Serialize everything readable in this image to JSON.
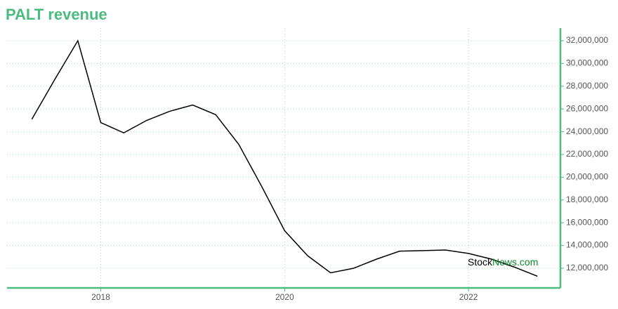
{
  "chart_data": {
    "type": "line",
    "title": "PALT revenue",
    "x": [
      2017.25,
      2017.5,
      2017.75,
      2018.0,
      2018.25,
      2018.5,
      2018.75,
      2019.0,
      2019.25,
      2019.5,
      2019.75,
      2020.0,
      2020.25,
      2020.5,
      2020.75,
      2021.0,
      2021.25,
      2021.5,
      2021.75,
      2022.0,
      2022.25,
      2022.5,
      2022.75
    ],
    "series": [
      {
        "name": "PALT revenue",
        "color": "#000000",
        "values": [
          25100000,
          28600000,
          32000000,
          24800000,
          23900000,
          25000000,
          25800000,
          26350000,
          25500000,
          22900000,
          19200000,
          15300000,
          13100000,
          11600000,
          12000000,
          12800000,
          13500000,
          13550000,
          13600000,
          13300000,
          12800000,
          12100000,
          11300000
        ]
      }
    ],
    "xlim": [
      2016.98,
      2023.0
    ],
    "xticks": [
      2018,
      2020,
      2022
    ],
    "ylim": [
      10270000,
      33110000
    ],
    "yticks": [
      {
        "value": 12000000,
        "label": "12,000,000"
      },
      {
        "value": 14000000,
        "label": "14,000,000"
      },
      {
        "value": 16000000,
        "label": "16,000,000"
      },
      {
        "value": 18000000,
        "label": "18,000,000"
      },
      {
        "value": 20000000,
        "label": "20,000,000"
      },
      {
        "value": 22000000,
        "label": "22,000,000"
      },
      {
        "value": 24000000,
        "label": "24,000,000"
      },
      {
        "value": 26000000,
        "label": "26,000,000"
      },
      {
        "value": 28000000,
        "label": "28,000,000"
      },
      {
        "value": 30000000,
        "label": "30,000,000"
      },
      {
        "value": 32000000,
        "label": "32,000,000"
      }
    ],
    "grid": true,
    "watermark": [
      "Stock",
      "News.com"
    ]
  }
}
